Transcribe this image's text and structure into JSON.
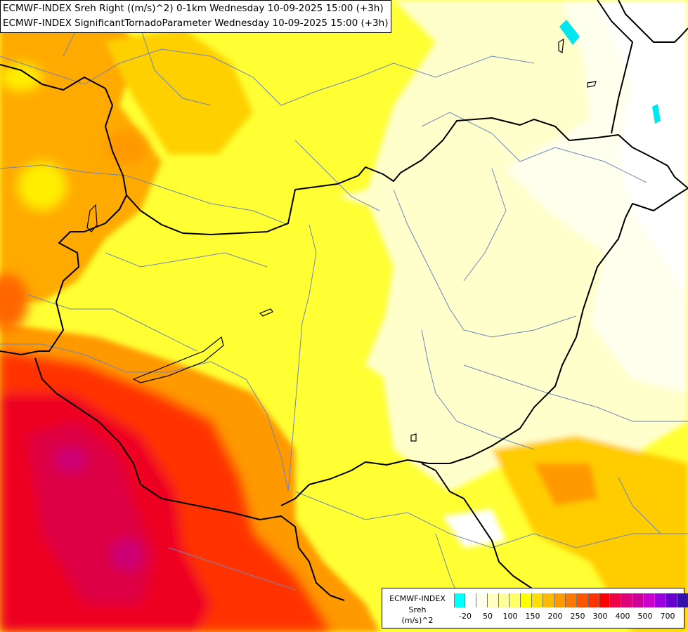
{
  "title_lines": [
    "ECMWF-INDEX Sreh Right ((m/s)^2) 0-1km Wednesday 10-09-2025 15:00 (+3h)",
    "ECMWF-INDEX SignificantTornadoParameter Wednesday 10-09-2025 15:00 (+3h)"
  ],
  "legend": {
    "title_line1": "ECMWF-INDEX",
    "title_line2": "Sreh",
    "unit": "(m/s)^2",
    "colors": [
      "#00ffff",
      "#ffffff",
      "#ffffee",
      "#ffffc0",
      "#ffff99",
      "#ffff66",
      "#ffff00",
      "#ffdd00",
      "#ffbb00",
      "#ff9900",
      "#ff7700",
      "#ff5500",
      "#ff3300",
      "#ff0000",
      "#ee0044",
      "#dd0077",
      "#cc0099",
      "#cc00cc",
      "#9900dd",
      "#6600cc",
      "#3311aa",
      "#000088"
    ],
    "tick_labels": [
      "-20",
      "50",
      "100",
      "150",
      "200",
      "250",
      "300",
      "400",
      "500",
      "700"
    ]
  },
  "map": {
    "background_color": "#ffff44",
    "isolated_color": "#00e8ee"
  }
}
